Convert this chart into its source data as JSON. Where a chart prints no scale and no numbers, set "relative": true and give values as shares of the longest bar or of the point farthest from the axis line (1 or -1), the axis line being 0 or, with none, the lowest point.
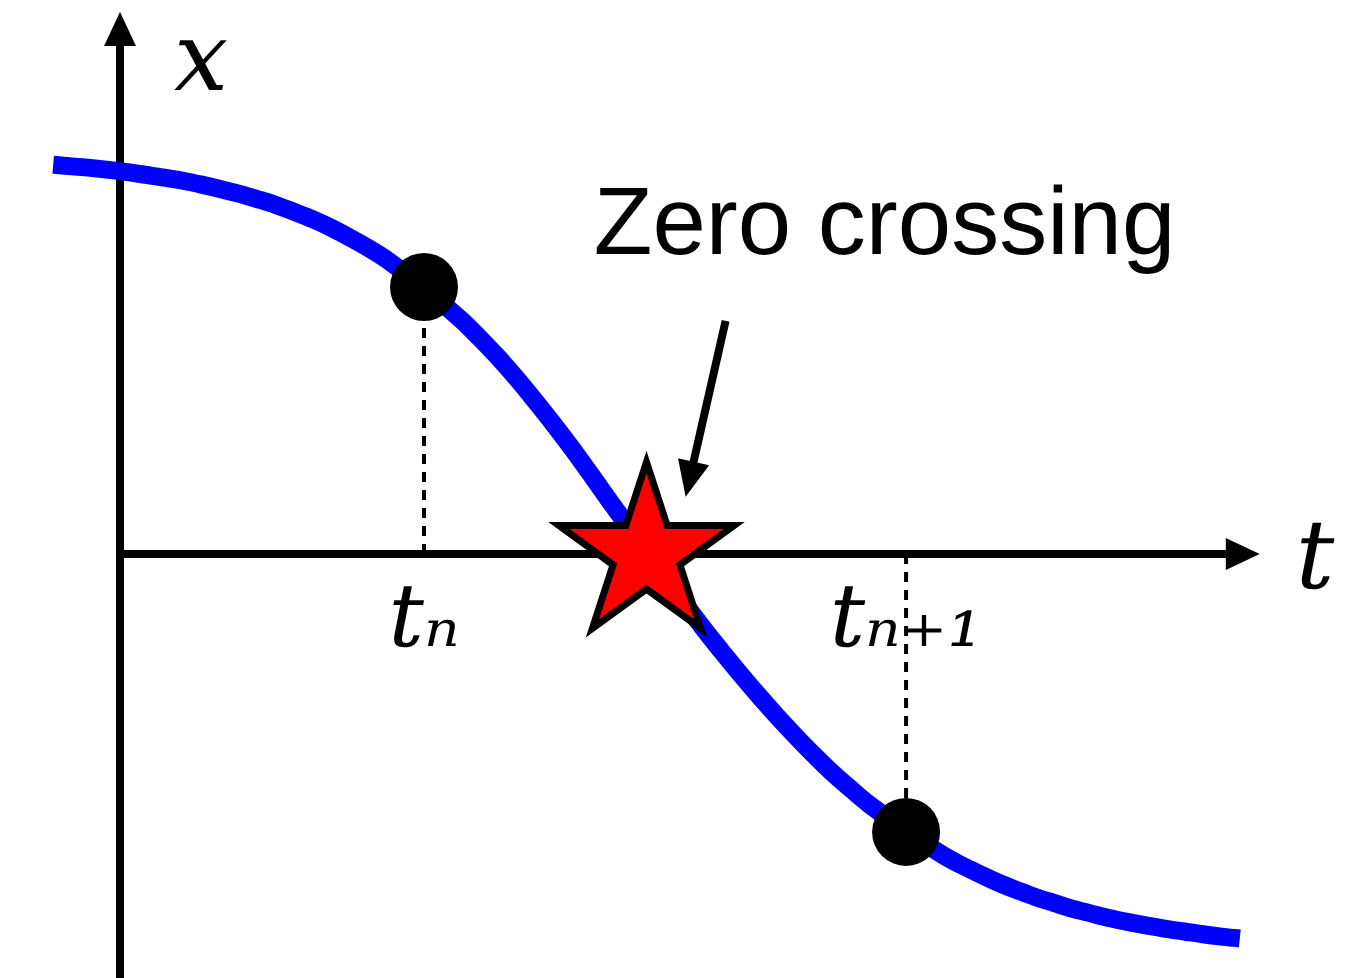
{
  "chart_data": {
    "type": "line",
    "xlabel": "t",
    "ylabel": "x",
    "annotations": [
      "Zero crossing"
    ],
    "relative": true,
    "tick_labels": "x",
    "categories": [
      null,
      null,
      null,
      null,
      null,
      null,
      null,
      null,
      null,
      null,
      null,
      null,
      null,
      null,
      null,
      null,
      null,
      null,
      null,
      null,
      "tₙ",
      null,
      null,
      null,
      null,
      null,
      null,
      null,
      null,
      null,
      null,
      null,
      null,
      null,
      null,
      null,
      null,
      null,
      null,
      null,
      null,
      null,
      null,
      null,
      null,
      null,
      "tₙ₊₁",
      null,
      null,
      null,
      null,
      null,
      null,
      null,
      null,
      null,
      null,
      null,
      null,
      null,
      null,
      null,
      null,
      null,
      null
    ],
    "series": [
      {
        "color": "#0000ff",
        "values": [
          1,
          0.996,
          0.992,
          0.987,
          0.981,
          0.974,
          0.967,
          0.959,
          0.949,
          0.938,
          0.926,
          0.912,
          0.897,
          0.879,
          0.86,
          0.838,
          0.813,
          0.786,
          0.756,
          null,
          null,
          null,
          0.602,
          0.555,
          0.505,
          0.451,
          0.393,
          0.333,
          0.27,
          0.204,
          0.137,
          null,
          null,
          null,
          null,
          -0.187,
          -0.247,
          -0.305,
          -0.361,
          -0.415,
          -0.466,
          -0.515,
          -0.561,
          -0.603,
          -0.643,
          null,
          null,
          null,
          -0.774,
          -0.8,
          -0.823,
          -0.845,
          -0.864,
          -0.882,
          -0.897,
          -0.912,
          -0.924,
          -0.936,
          -0.946,
          -0.955,
          -0.963,
          -0.97,
          -0.977,
          -0.983,
          -0.988
        ]
      },
      {
        "type": "lollipop",
        "color": "#000000",
        "marker": "circle",
        "line_style": "dashed",
        "values": [
          null,
          null,
          null,
          null,
          null,
          null,
          null,
          null,
          null,
          null,
          null,
          null,
          null,
          null,
          null,
          null,
          null,
          null,
          null,
          null,
          0.686,
          null,
          null,
          null,
          null,
          null,
          null,
          null,
          null,
          null,
          null,
          null,
          null,
          null,
          null,
          null,
          null,
          null,
          null,
          null,
          null,
          null,
          null,
          null,
          null,
          null,
          -0.714,
          null,
          null,
          null,
          null,
          null,
          null,
          null,
          null,
          null,
          null,
          null,
          null,
          null,
          null,
          null,
          null,
          null,
          null
        ]
      },
      {
        "type": "scatter",
        "color": "#ff0000",
        "marker": "star",
        "values": [
          null,
          null,
          null,
          null,
          null,
          null,
          null,
          null,
          null,
          null,
          null,
          null,
          null,
          null,
          null,
          null,
          null,
          null,
          null,
          null,
          null,
          null,
          null,
          null,
          null,
          null,
          null,
          null,
          null,
          null,
          null,
          null,
          0,
          null,
          null,
          null,
          null,
          null,
          null,
          null,
          null,
          null,
          null,
          null,
          null,
          null,
          null,
          null,
          null,
          null,
          null,
          null,
          null,
          null,
          null,
          null,
          null,
          null,
          null,
          null,
          null,
          null,
          null,
          null,
          null
        ]
      }
    ]
  }
}
